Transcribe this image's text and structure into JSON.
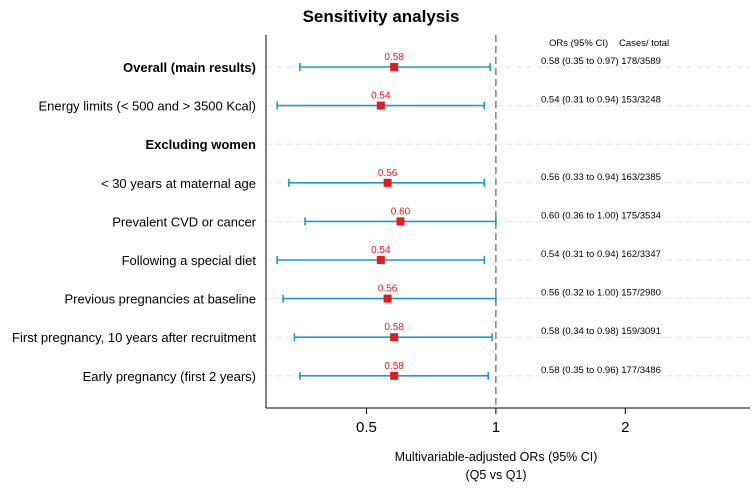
{
  "chart_data": {
    "type": "forest",
    "title": "Sensitivity analysis",
    "xlabel_line1": "Multivariable-adjusted ORs (95% CI)",
    "xlabel_line2": "(Q5 vs Q1)",
    "column_headers": {
      "or": "ORs (95% CI)",
      "cases": "Cases/ total"
    },
    "x_ticks": [
      {
        "value": 0.5,
        "label": "0.5"
      },
      {
        "value": 1,
        "label": "1"
      },
      {
        "value": 2,
        "label": "2"
      }
    ],
    "reference_value": 1,
    "x_scale": "log",
    "xlim": [
      0.292,
      3.9
    ],
    "colors": {
      "ci": "#1f96d8",
      "point": "#e41a1c",
      "reference": "#777777",
      "grid": "#e6e6e6"
    },
    "rows": [
      {
        "label": "Overall (main results)",
        "bold": true,
        "or": 0.58,
        "lower": 0.35,
        "upper": 0.97,
        "point_label": "0.58",
        "summary": "0.58 (0.35 to 0.97) 178/3589"
      },
      {
        "label": "Energy limits (< 500 and > 3500 Kcal)",
        "bold": false,
        "or": 0.54,
        "lower": 0.31,
        "upper": 0.94,
        "point_label": "0.54",
        "summary": "0.54 (0.31 to 0.94) 153/3248"
      },
      {
        "label": "Excluding women",
        "bold": true,
        "or": null,
        "lower": null,
        "upper": null,
        "point_label": "",
        "summary": ""
      },
      {
        "label": "< 30 years at maternal age",
        "bold": false,
        "or": 0.56,
        "lower": 0.33,
        "upper": 0.94,
        "point_label": "0.56",
        "summary": "0.56 (0.33 to 0.94) 163/2385"
      },
      {
        "label": "Prevalent CVD or cancer",
        "bold": false,
        "or": 0.6,
        "lower": 0.36,
        "upper": 1.0,
        "point_label": "0.60",
        "summary": "0.60 (0.36 to 1.00) 175/3534"
      },
      {
        "label": "Following a special diet",
        "bold": false,
        "or": 0.54,
        "lower": 0.31,
        "upper": 0.94,
        "point_label": "0.54",
        "summary": "0.54 (0.31 to 0.94) 162/3347"
      },
      {
        "label": "Previous pregnancies at baseline",
        "bold": false,
        "or": 0.56,
        "lower": 0.32,
        "upper": 1.0,
        "point_label": "0.56",
        "summary": "0.56 (0.32 to 1.00) 157/2980"
      },
      {
        "label": "First pregnancy, 10 years after recruitment",
        "bold": false,
        "or": 0.58,
        "lower": 0.34,
        "upper": 0.98,
        "point_label": "0.58",
        "summary": "0.58 (0.34 to 0.98)  159/3091"
      },
      {
        "label": "Early pregnancy (first 2 years)",
        "bold": false,
        "or": 0.58,
        "lower": 0.35,
        "upper": 0.96,
        "point_label": "0.58",
        "summary": "0.58 (0.35 to 0.96)  177/3486"
      }
    ]
  }
}
